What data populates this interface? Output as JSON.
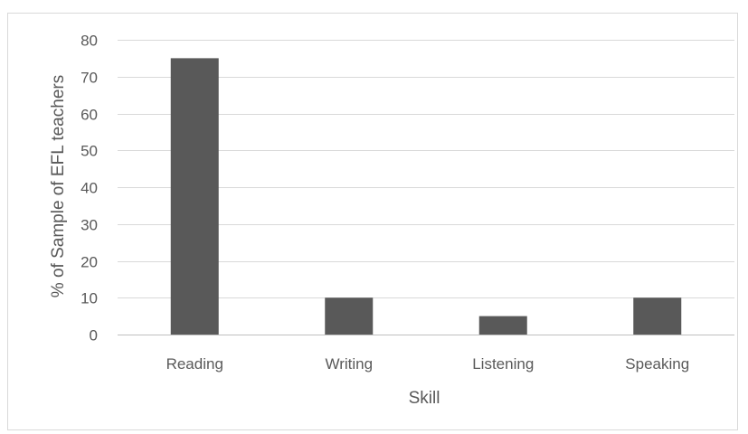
{
  "chart_data": {
    "type": "bar",
    "title": "",
    "xlabel": "Skill",
    "ylabel": "% of Sample of EFL teachers",
    "categories": [
      "Reading",
      "Writing",
      "Listening",
      "Speaking"
    ],
    "values": [
      75,
      10,
      5,
      10
    ],
    "ylim": [
      0,
      80
    ],
    "yticks": [
      0,
      10,
      20,
      30,
      40,
      50,
      60,
      70,
      80
    ],
    "grid": true,
    "legend": "none",
    "bar_color": "#595959"
  }
}
